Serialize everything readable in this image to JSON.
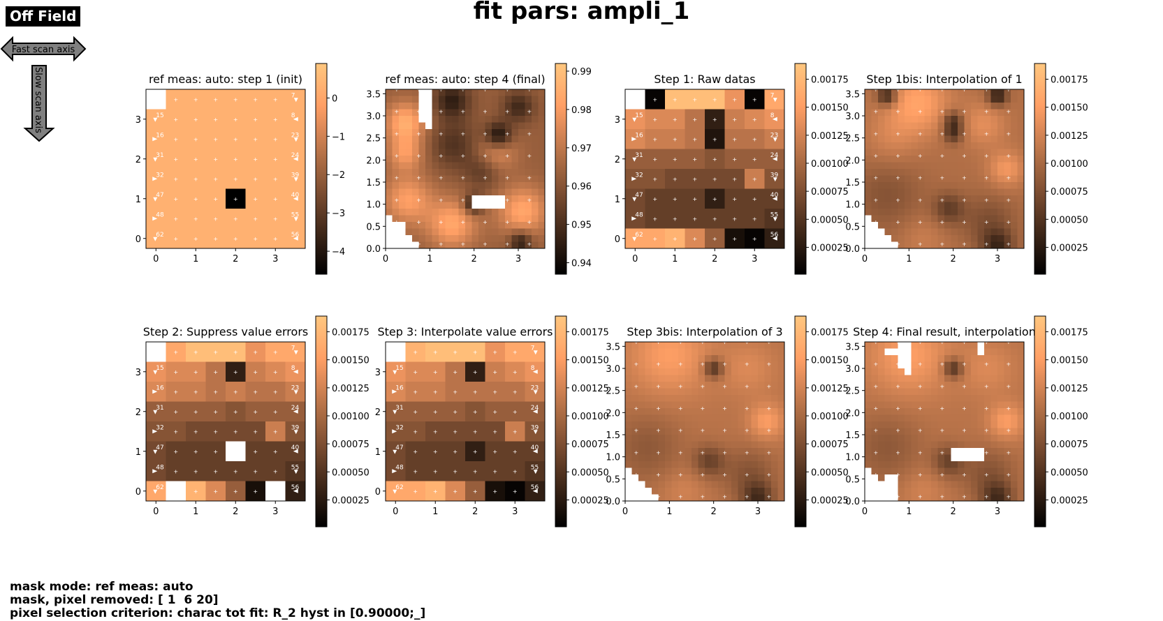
{
  "header": {
    "title": "fit pars: ampli_1",
    "off_field": "Off Field",
    "fast_axis": "Fast scan axis",
    "slow_axis": "Slow scan axis"
  },
  "footer": {
    "line1": "mask mode: ref meas: auto",
    "line2": "mask, pixel removed: [ 1  6 20]",
    "line3": "pixel selection criterion: charac tot fit: R_2 hyst in [0.90000;_]"
  },
  "colors": {
    "cmap": [
      "#000000",
      "#ffc77f"
    ],
    "marker": "#ffffff",
    "masked": "#ffffff"
  },
  "chart_data": [
    {
      "type": "heatmap",
      "title": "ref meas: auto: step 1 (init)",
      "grid": "8x8",
      "colorbar": {
        "min": -4.6,
        "max": 0.9,
        "ticks": [
          0,
          -1,
          -2,
          -3,
          -4
        ],
        "labels": [
          "0",
          "−1",
          "−2",
          "−3",
          "−4"
        ]
      },
      "xticks": [
        "0",
        "1",
        "2",
        "3"
      ],
      "yticks": [
        "0",
        "1",
        "2",
        "3"
      ],
      "point_labels": [
        "0",
        "7",
        "15",
        "8",
        "16",
        "23",
        "31",
        "24",
        "32",
        "39",
        "47",
        "40",
        "48",
        "55",
        "62",
        "56"
      ],
      "masked_cells": [
        [
          0,
          0
        ]
      ],
      "values": [
        [
          0.28,
          0.28,
          0.28,
          0.28,
          0.28,
          0.28,
          0.28,
          0.28
        ],
        [
          0.28,
          0.28,
          0.28,
          0.28,
          0.28,
          0.28,
          0.28,
          0.28
        ],
        [
          0.28,
          0.28,
          0.28,
          0.28,
          0.28,
          0.28,
          0.28,
          0.28
        ],
        [
          0.28,
          0.28,
          0.28,
          0.28,
          0.28,
          0.28,
          0.28,
          0.28
        ],
        [
          0.28,
          0.28,
          0.28,
          0.28,
          0.28,
          0.28,
          0.28,
          0.28
        ],
        [
          0.28,
          0.28,
          0.28,
          0.28,
          -4.6,
          0.28,
          0.28,
          0.28
        ],
        [
          0.28,
          0.28,
          0.28,
          0.28,
          0.28,
          0.28,
          0.28,
          0.28
        ],
        [
          0.28,
          0.28,
          0.28,
          0.28,
          0.28,
          0.28,
          0.28,
          0.28
        ]
      ]
    },
    {
      "type": "heatmap",
      "title": "ref meas: auto: step 4 (final)",
      "grid": "24x24",
      "colorbar": {
        "min": 0.937,
        "max": 0.992,
        "ticks": [
          0.99,
          0.98,
          0.97,
          0.96,
          0.95,
          0.94
        ],
        "labels": [
          "0.99",
          "0.98",
          "0.97",
          "0.96",
          "0.95",
          "0.94"
        ]
      },
      "xticks": [
        "0",
        "1",
        "2",
        "3"
      ],
      "yticks": [
        "0.0",
        "0.5",
        "1.0",
        "1.5",
        "2.0",
        "2.5",
        "3.0",
        "3.5"
      ],
      "base": 0.963,
      "blobs": [
        [
          0.45,
          2.85,
          0.45,
          0.022
        ],
        [
          0.45,
          2.15,
          0.4,
          0.016
        ],
        [
          2.5,
          2.2,
          0.45,
          0.014
        ],
        [
          1.5,
          3.35,
          0.4,
          -0.018
        ],
        [
          3.0,
          3.2,
          0.35,
          -0.015
        ],
        [
          2.55,
          2.55,
          0.3,
          -0.025
        ],
        [
          1.55,
          2.35,
          0.55,
          -0.012
        ],
        [
          2.2,
          1.75,
          0.4,
          -0.01
        ],
        [
          2.0,
          1.0,
          0.22,
          -0.024
        ],
        [
          0.5,
          1.1,
          0.55,
          0.018
        ],
        [
          1.5,
          0.55,
          0.55,
          0.02
        ],
        [
          3.1,
          0.85,
          0.55,
          0.02
        ],
        [
          3.05,
          0.15,
          0.25,
          -0.02
        ],
        [
          0.15,
          0.1,
          0.25,
          0.012
        ]
      ],
      "masked_cells": [
        [
          20,
          2
        ],
        [
          21,
          2
        ],
        [
          22,
          2
        ],
        [
          23,
          2
        ],
        [
          0,
          5
        ],
        [
          1,
          5
        ],
        [
          2,
          5
        ],
        [
          3,
          5
        ],
        [
          4,
          5
        ],
        [
          0,
          6
        ],
        [
          1,
          6
        ],
        [
          2,
          6
        ],
        [
          3,
          6
        ],
        [
          4,
          6
        ],
        [
          5,
          6
        ],
        [
          16,
          17
        ],
        [
          17,
          17
        ],
        [
          16,
          16
        ],
        [
          17,
          16
        ],
        [
          16,
          15
        ],
        [
          17,
          15
        ],
        [
          16,
          14
        ],
        [
          17,
          14
        ],
        [
          16,
          13
        ],
        [
          17,
          13
        ]
      ],
      "staircase": true,
      "markers": true
    },
    {
      "type": "heatmap",
      "title": "Step 1: Raw datas",
      "grid": "8x8",
      "colorbar": {
        "min": 1e-05,
        "max": 0.00189,
        "ticks": [
          0.00175,
          0.0015,
          0.00125,
          0.001,
          0.00075,
          0.0005,
          0.00025
        ],
        "labels": [
          "0.00175",
          "0.00150",
          "0.00125",
          "0.00100",
          "0.00075",
          "0.00050",
          "0.00025"
        ]
      },
      "xticks": [
        "0",
        "1",
        "2",
        "3"
      ],
      "yticks": [
        "0",
        "1",
        "2",
        "3"
      ],
      "point_labels": [
        "0",
        "7",
        "15",
        "8",
        "16",
        "23",
        "31",
        "24",
        "32",
        "39",
        "47",
        "40",
        "48",
        "55",
        "62",
        "56"
      ],
      "masked_cells": [
        [
          0,
          0
        ]
      ],
      "values": [
        [
          0.0016,
          5e-05,
          0.0018,
          0.0018,
          0.0018,
          0.0014,
          5e-05,
          0.0016
        ],
        [
          0.0014,
          0.0013,
          0.0013,
          0.0011,
          0.0003,
          0.0012,
          0.0013,
          0.0014
        ],
        [
          0.0013,
          0.0012,
          0.0012,
          0.0011,
          0.0002,
          0.0011,
          0.0011,
          0.0012
        ],
        [
          0.0009,
          0.0009,
          0.0009,
          0.0009,
          0.0008,
          0.0009,
          0.0009,
          0.0009
        ],
        [
          0.0008,
          0.0008,
          0.0007,
          0.0007,
          0.0007,
          0.0007,
          0.0012,
          0.0008
        ],
        [
          0.0007,
          0.0006,
          0.0006,
          0.0006,
          0.0003,
          0.0006,
          0.0006,
          0.0006
        ],
        [
          0.0007,
          0.0006,
          0.0006,
          0.0006,
          0.0006,
          0.0006,
          0.0006,
          0.0005
        ],
        [
          0.0016,
          0.0016,
          0.0017,
          0.0013,
          0.0009,
          0.00015,
          5e-05,
          0.0003
        ]
      ]
    },
    {
      "type": "heatmap",
      "title": "Step 1bis: Interpolation of 1",
      "grid": "24x24",
      "colorbar": {
        "min": 1e-05,
        "max": 0.00189,
        "ticks": [
          0.00175,
          0.0015,
          0.00125,
          0.001,
          0.00075,
          0.0005,
          0.00025
        ],
        "labels": [
          "0.00175",
          "0.00150",
          "0.00125",
          "0.00100",
          "0.00075",
          "0.00050",
          "0.00025"
        ]
      },
      "xticks": [
        "0",
        "1",
        "2",
        "3"
      ],
      "yticks": [
        "0.0",
        "0.5",
        "1.0",
        "1.5",
        "2.0",
        "2.5",
        "3.0",
        "3.5"
      ],
      "base": 0.00105,
      "blobs": [
        [
          0.5,
          3.45,
          0.22,
          -0.0008
        ],
        [
          3.0,
          3.45,
          0.22,
          -0.0008
        ],
        [
          2.0,
          2.9,
          0.22,
          -0.0006
        ],
        [
          2.0,
          2.6,
          0.22,
          -0.0006
        ],
        [
          1.2,
          3.3,
          0.7,
          0.0005
        ],
        [
          2.7,
          2.8,
          0.5,
          0.0003
        ],
        [
          0.6,
          2.5,
          0.6,
          0.0002
        ],
        [
          3.2,
          1.8,
          0.4,
          0.0004
        ],
        [
          0.5,
          1.2,
          0.8,
          -0.00025
        ],
        [
          1.9,
          0.9,
          0.35,
          -0.00045
        ],
        [
          2.8,
          0.6,
          0.6,
          -0.0003
        ],
        [
          3.0,
          0.05,
          0.35,
          -0.0006
        ],
        [
          1.3,
          0.25,
          0.5,
          0.00015
        ]
      ],
      "masked_cells": [],
      "staircase": true,
      "markers": true
    },
    {
      "type": "heatmap",
      "title": "Step 2: Suppress value errors",
      "grid": "8x8",
      "colorbar": {
        "min": 1e-05,
        "max": 0.00189,
        "ticks": [
          0.00175,
          0.0015,
          0.00125,
          0.001,
          0.00075,
          0.0005,
          0.00025
        ],
        "labels": [
          "0.00175",
          "0.00150",
          "0.00125",
          "0.00100",
          "0.00075",
          "0.00050",
          "0.00025"
        ]
      },
      "xticks": [
        "0",
        "1",
        "2",
        "3"
      ],
      "yticks": [
        "0",
        "1",
        "2",
        "3"
      ],
      "point_labels": [
        "0",
        "7",
        "15",
        "8",
        "16",
        "23",
        "31",
        "24",
        "32",
        "39",
        "47",
        "40",
        "48",
        "55",
        "62",
        "56"
      ],
      "masked_cells": [
        [
          0,
          0
        ],
        [
          7,
          1
        ],
        [
          7,
          6
        ],
        [
          5,
          4
        ]
      ],
      "values": [
        [
          0.0016,
          0.0016,
          0.0018,
          0.0018,
          0.0018,
          0.0014,
          0.0016,
          0.0016
        ],
        [
          0.0014,
          0.0013,
          0.0013,
          0.0011,
          0.0003,
          0.0012,
          0.0013,
          0.0014
        ],
        [
          0.0013,
          0.0012,
          0.0012,
          0.0011,
          0.0012,
          0.0011,
          0.0011,
          0.0012
        ],
        [
          0.0009,
          0.0009,
          0.0009,
          0.0009,
          0.0008,
          0.0009,
          0.0009,
          0.0009
        ],
        [
          0.0008,
          0.0008,
          0.0007,
          0.0007,
          0.0007,
          0.0007,
          0.0012,
          0.0008
        ],
        [
          0.0007,
          0.0006,
          0.0006,
          0.0006,
          0.0003,
          0.0006,
          0.0006,
          0.0006
        ],
        [
          0.0007,
          0.0006,
          0.0006,
          0.0006,
          0.0006,
          0.0006,
          0.0006,
          0.0005
        ],
        [
          0.0016,
          0.0016,
          0.0017,
          0.0013,
          0.0009,
          0.00015,
          5e-05,
          0.0003
        ]
      ]
    },
    {
      "type": "heatmap",
      "title": "Step 3: Interpolate value errors",
      "grid": "8x8",
      "colorbar": {
        "min": 1e-05,
        "max": 0.00189,
        "ticks": [
          0.00175,
          0.0015,
          0.00125,
          0.001,
          0.00075,
          0.0005,
          0.00025
        ],
        "labels": [
          "0.00175",
          "0.00150",
          "0.00125",
          "0.00100",
          "0.00075",
          "0.00050",
          "0.00025"
        ]
      },
      "xticks": [
        "0",
        "1",
        "2",
        "3"
      ],
      "yticks": [
        "0",
        "1",
        "2",
        "3"
      ],
      "point_labels": [
        "0",
        "7",
        "15",
        "8",
        "16",
        "23",
        "31",
        "24",
        "32",
        "39",
        "47",
        "40",
        "48",
        "55",
        "62",
        "56"
      ],
      "masked_cells": [
        [
          0,
          0
        ]
      ],
      "values": [
        [
          0.0016,
          0.0017,
          0.0018,
          0.0018,
          0.0018,
          0.0014,
          0.0016,
          0.0016
        ],
        [
          0.0014,
          0.0013,
          0.0013,
          0.0011,
          0.0003,
          0.0012,
          0.0013,
          0.0014
        ],
        [
          0.0013,
          0.0012,
          0.0012,
          0.0011,
          0.0011,
          0.0011,
          0.0011,
          0.0012
        ],
        [
          0.0009,
          0.0009,
          0.0009,
          0.0009,
          0.0008,
          0.0009,
          0.0009,
          0.0009
        ],
        [
          0.0008,
          0.0008,
          0.0007,
          0.0007,
          0.0007,
          0.0007,
          0.0012,
          0.0008
        ],
        [
          0.0007,
          0.0006,
          0.0006,
          0.0006,
          0.0003,
          0.0006,
          0.0006,
          0.0006
        ],
        [
          0.0007,
          0.0006,
          0.0006,
          0.0006,
          0.0006,
          0.0006,
          0.0006,
          0.0005
        ],
        [
          0.0016,
          0.0016,
          0.0017,
          0.0013,
          0.0009,
          0.00015,
          5e-05,
          0.0003
        ]
      ]
    },
    {
      "type": "heatmap",
      "title": "Step 3bis: Interpolation of 3",
      "grid": "24x24",
      "colorbar": {
        "min": 1e-05,
        "max": 0.00189,
        "ticks": [
          0.00175,
          0.0015,
          0.00125,
          0.001,
          0.00075,
          0.0005,
          0.00025
        ],
        "labels": [
          "0.00175",
          "0.00150",
          "0.00125",
          "0.00100",
          "0.00075",
          "0.00050",
          "0.00025"
        ]
      },
      "xticks": [
        "0",
        "1",
        "2",
        "3"
      ],
      "yticks": [
        "0.0",
        "0.5",
        "1.0",
        "1.5",
        "2.0",
        "2.5",
        "3.0",
        "3.5"
      ],
      "base": 0.0011,
      "blobs": [
        [
          2.0,
          3.0,
          0.22,
          -0.0007
        ],
        [
          1.0,
          3.3,
          0.9,
          0.0004
        ],
        [
          2.8,
          3.0,
          0.6,
          0.0002
        ],
        [
          3.2,
          1.8,
          0.4,
          0.0004
        ],
        [
          0.5,
          1.2,
          0.8,
          -0.00025
        ],
        [
          1.9,
          0.9,
          0.35,
          -0.00045
        ],
        [
          2.8,
          0.6,
          0.6,
          -0.0003
        ],
        [
          3.0,
          0.05,
          0.35,
          -0.0006
        ],
        [
          1.3,
          0.25,
          0.5,
          0.00015
        ]
      ],
      "masked_cells": [],
      "staircase": true,
      "markers": true
    },
    {
      "type": "heatmap",
      "title": "Step 4: Final result, interpolation",
      "grid": "24x24",
      "colorbar": {
        "min": 1e-05,
        "max": 0.00189,
        "ticks": [
          0.00175,
          0.0015,
          0.00125,
          0.001,
          0.00075,
          0.0005,
          0.00025
        ],
        "labels": [
          "0.00175",
          "0.00150",
          "0.00125",
          "0.00100",
          "0.00075",
          "0.00050",
          "0.00025"
        ]
      },
      "xticks": [
        "0",
        "1",
        "2",
        "3"
      ],
      "yticks": [
        "0.0",
        "0.5",
        "1.0",
        "1.5",
        "2.0",
        "2.5",
        "3.0",
        "3.5"
      ],
      "base": 0.0011,
      "blobs": [
        [
          2.0,
          3.0,
          0.22,
          -0.0007
        ],
        [
          1.0,
          3.3,
          0.9,
          0.0004
        ],
        [
          2.8,
          3.0,
          0.6,
          0.0002
        ],
        [
          3.2,
          1.8,
          0.4,
          0.0004
        ],
        [
          0.5,
          1.2,
          0.8,
          -0.00025
        ],
        [
          1.9,
          0.9,
          0.35,
          -0.00045
        ],
        [
          2.8,
          0.6,
          0.6,
          -0.0003
        ],
        [
          3.0,
          0.05,
          0.35,
          -0.0006
        ],
        [
          1.3,
          0.25,
          0.5,
          0.00015
        ]
      ],
      "masked_cells": [
        [
          20,
          3
        ],
        [
          21,
          3
        ],
        [
          22,
          3
        ],
        [
          23,
          3
        ],
        [
          20,
          4
        ],
        [
          21,
          4
        ],
        [
          22,
          4
        ],
        [
          23,
          4
        ],
        [
          1,
          3
        ],
        [
          1,
          4
        ],
        [
          0,
          5
        ],
        [
          1,
          5
        ],
        [
          2,
          5
        ],
        [
          3,
          5
        ],
        [
          0,
          6
        ],
        [
          1,
          6
        ],
        [
          2,
          6
        ],
        [
          3,
          6
        ],
        [
          4,
          6
        ],
        [
          0,
          17
        ],
        [
          1,
          17
        ],
        [
          16,
          16
        ],
        [
          16,
          17
        ],
        [
          17,
          16
        ],
        [
          17,
          17
        ],
        [
          16,
          15
        ],
        [
          17,
          15
        ],
        [
          16,
          14
        ],
        [
          17,
          14
        ],
        [
          16,
          13
        ],
        [
          17,
          13
        ]
      ],
      "staircase": true,
      "markers": true
    }
  ]
}
